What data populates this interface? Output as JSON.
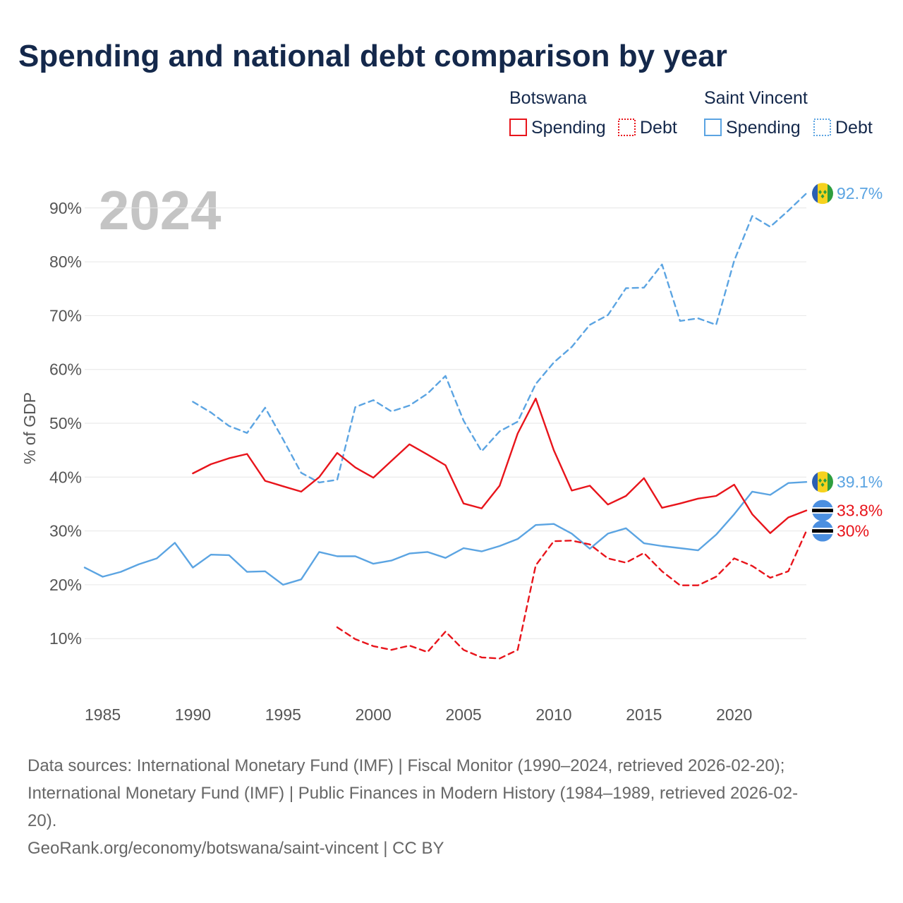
{
  "chart_data": {
    "type": "line",
    "title": "Spending and national debt comparison by year",
    "ylabel": "% of GDP",
    "xlabel": "",
    "ylim": [
      0,
      95
    ],
    "xlim": [
      1984,
      2024
    ],
    "x_ticks": [
      1985,
      1990,
      1995,
      2000,
      2005,
      2010,
      2015,
      2020
    ],
    "y_ticks": [
      10,
      20,
      30,
      40,
      50,
      60,
      70,
      80,
      90
    ],
    "y_tick_labels": [
      "10%",
      "20%",
      "30%",
      "40%",
      "50%",
      "60%",
      "70%",
      "80%",
      "90%"
    ],
    "year_label": "2024",
    "legend": {
      "groups": [
        {
          "country": "Botswana",
          "items": [
            {
              "label": "Spending",
              "style": "solid",
              "color": "#e8141b"
            },
            {
              "label": "Debt",
              "style": "dashed",
              "color": "#e8141b"
            }
          ]
        },
        {
          "country": "Saint Vincent",
          "items": [
            {
              "label": "Spending",
              "style": "solid",
              "color": "#5ba4e2"
            },
            {
              "label": "Debt",
              "style": "dashed",
              "color": "#5ba4e2"
            }
          ]
        }
      ]
    },
    "series": [
      {
        "name": "Saint Vincent Debt",
        "country": "Saint Vincent",
        "metric": "Debt",
        "color": "#5ba4e2",
        "style": "dashed",
        "x": [
          1990,
          1991,
          1992,
          1993,
          1994,
          1995,
          1996,
          1997,
          1998,
          1999,
          2000,
          2001,
          2002,
          2003,
          2004,
          2005,
          2006,
          2007,
          2008,
          2009,
          2010,
          2011,
          2012,
          2013,
          2014,
          2015,
          2016,
          2017,
          2018,
          2019,
          2020,
          2021,
          2022,
          2023,
          2024
        ],
        "values": [
          54.0,
          52.0,
          49.5,
          48.2,
          52.9,
          47.0,
          40.8,
          39.0,
          39.5,
          53.0,
          54.3,
          52.2,
          53.3,
          55.5,
          58.8,
          50.5,
          44.8,
          48.5,
          50.3,
          57.3,
          61.3,
          64.2,
          68.3,
          70.1,
          75.1,
          75.2,
          79.5,
          69.0,
          69.5,
          68.3,
          80.2,
          88.5,
          86.5,
          89.5,
          92.7
        ],
        "end_label": "92.7%"
      },
      {
        "name": "Saint Vincent Spending",
        "country": "Saint Vincent",
        "metric": "Spending",
        "color": "#5ba4e2",
        "style": "solid",
        "x": [
          1984,
          1985,
          1986,
          1987,
          1988,
          1989,
          1990,
          1991,
          1992,
          1993,
          1994,
          1995,
          1996,
          1997,
          1998,
          1999,
          2000,
          2001,
          2002,
          2003,
          2004,
          2005,
          2006,
          2007,
          2008,
          2009,
          2010,
          2011,
          2012,
          2013,
          2014,
          2015,
          2016,
          2017,
          2018,
          2019,
          2020,
          2021,
          2022,
          2023,
          2024
        ],
        "values": [
          23.2,
          21.5,
          22.4,
          23.8,
          24.9,
          27.8,
          23.2,
          25.6,
          25.5,
          22.4,
          22.5,
          20.0,
          21.0,
          26.1,
          25.3,
          25.3,
          23.9,
          24.5,
          25.8,
          26.1,
          25.0,
          26.8,
          26.2,
          27.2,
          28.5,
          31.1,
          31.3,
          29.5,
          26.7,
          29.5,
          30.5,
          27.7,
          27.2,
          26.8,
          26.4,
          29.3,
          33.1,
          37.3,
          36.7,
          38.9,
          39.1
        ],
        "end_label": "39.1%"
      },
      {
        "name": "Botswana Spending",
        "country": "Botswana",
        "metric": "Spending",
        "color": "#e8141b",
        "style": "solid",
        "x": [
          1990,
          1991,
          1992,
          1993,
          1994,
          1995,
          1996,
          1997,
          1998,
          1999,
          2000,
          2001,
          2002,
          2003,
          2004,
          2005,
          2006,
          2007,
          2008,
          2009,
          2010,
          2011,
          2012,
          2013,
          2014,
          2015,
          2016,
          2017,
          2018,
          2019,
          2020,
          2021,
          2022,
          2023,
          2024
        ],
        "values": [
          40.7,
          42.4,
          43.5,
          44.3,
          39.3,
          38.3,
          37.3,
          40.0,
          44.5,
          41.8,
          39.9,
          43.0,
          46.1,
          44.2,
          42.2,
          35.1,
          34.2,
          38.4,
          48.1,
          54.6,
          45.0,
          37.5,
          38.4,
          34.9,
          36.5,
          39.8,
          34.3,
          35.1,
          36.0,
          36.5,
          38.6,
          33.1,
          29.6,
          32.5,
          33.8
        ],
        "end_label": "33.8%"
      },
      {
        "name": "Botswana Debt",
        "country": "Botswana",
        "metric": "Debt",
        "color": "#e8141b",
        "style": "dashed",
        "x": [
          1998,
          1999,
          2000,
          2001,
          2002,
          2003,
          2004,
          2005,
          2006,
          2007,
          2008,
          2009,
          2010,
          2011,
          2012,
          2013,
          2014,
          2015,
          2016,
          2017,
          2018,
          2019,
          2020,
          2021,
          2022,
          2023,
          2024
        ],
        "values": [
          12.1,
          9.9,
          8.6,
          7.9,
          8.7,
          7.5,
          11.3,
          7.9,
          6.5,
          6.3,
          7.9,
          23.6,
          28.1,
          28.2,
          27.5,
          24.9,
          24.1,
          25.9,
          22.5,
          19.9,
          19.9,
          21.5,
          24.9,
          23.5,
          21.3,
          22.5,
          30.0
        ],
        "end_label": "30%"
      }
    ]
  },
  "source": {
    "lines": [
      "Data sources: International Monetary Fund (IMF) | Fiscal Monitor (1990–2024, retrieved 2026-02-20);",
      "International Monetary Fund (IMF) | Public Finances in Modern History (1984–1989, retrieved 2026-02-",
      "20)."
    ],
    "url_line": "GeoRank.org/economy/botswana/saint-vincent | CC BY"
  },
  "flags": {
    "Saint Vincent": {
      "left": "#2b5fb3",
      "center": "#f6d21e",
      "right": "#2e9e3e",
      "emblem": "#2e9e3e"
    },
    "Botswana": {
      "field": "#4b8fe0",
      "band_edge": "#ffffff",
      "band": "#000000"
    }
  }
}
